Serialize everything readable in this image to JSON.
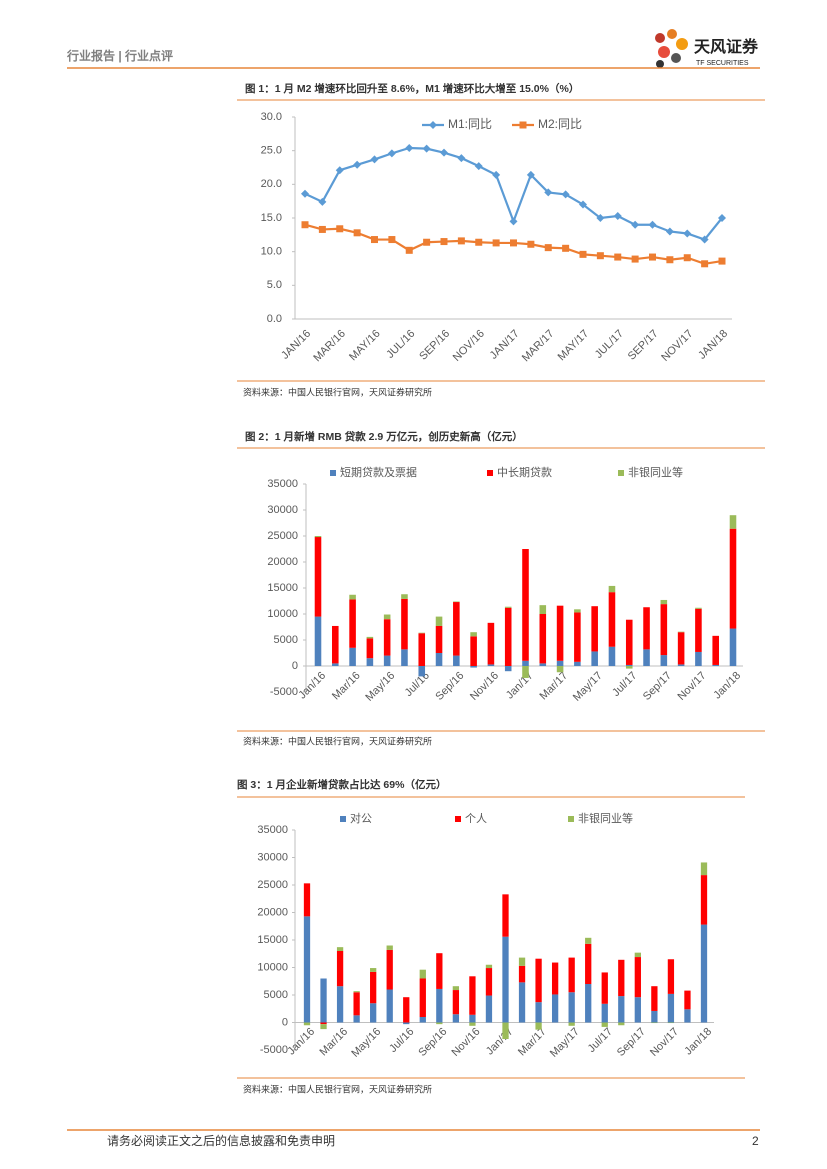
{
  "header": {
    "title": "行业报告 | 行业点评",
    "logo_name": "天风证券",
    "logo_sub": "TF SECURITIES"
  },
  "footer": {
    "text": "请务必阅读正文之后的信息披露和免责申明",
    "page": "2"
  },
  "chart_data": [
    {
      "type": "line",
      "title": "图 1：1 月 M2 增速环比回升至 8.6%，M1 增速环比大增至 15.0%（%）",
      "source": "资料来源：中国人民银行官网，天风证券研究所",
      "categories": [
        "JAN/16",
        null,
        "MAR/16",
        null,
        "MAY/16",
        null,
        "JUL/16",
        null,
        "SEP/16",
        null,
        "NOV/16",
        null,
        "JAN/17",
        null,
        "MAR/17",
        null,
        "MAY/17",
        null,
        "JUL/17",
        null,
        "SEP/17",
        null,
        "NOV/17",
        null,
        "JAN/18"
      ],
      "series": [
        {
          "name": "M1:同比",
          "color": "#5b9bd5",
          "marker": "diamond",
          "values": [
            18.6,
            17.4,
            22.1,
            22.9,
            23.7,
            24.6,
            25.4,
            25.3,
            24.7,
            23.9,
            22.7,
            21.4,
            14.5,
            21.4,
            18.8,
            18.5,
            17.0,
            15.0,
            15.3,
            14.0,
            14.0,
            13.0,
            12.7,
            11.8,
            15.0
          ]
        },
        {
          "name": "M2:同比",
          "color": "#ed7d31",
          "marker": "square",
          "values": [
            14.0,
            13.3,
            13.4,
            12.8,
            11.8,
            11.8,
            10.2,
            11.4,
            11.5,
            11.6,
            11.4,
            11.3,
            11.3,
            11.1,
            10.6,
            10.5,
            9.6,
            9.4,
            9.2,
            8.9,
            9.2,
            8.8,
            9.1,
            8.2,
            8.6
          ]
        }
      ],
      "ylim": [
        0,
        30
      ],
      "yticks": [
        {
          "value": 0,
          "label": "0.0"
        },
        {
          "value": 5,
          "label": "5.0"
        },
        {
          "value": 10,
          "label": "10.0"
        },
        {
          "value": 15,
          "label": "15.0"
        },
        {
          "value": 20,
          "label": "20.0"
        },
        {
          "value": 25,
          "label": "25.0"
        },
        {
          "value": 30,
          "label": "30.0"
        }
      ]
    },
    {
      "type": "stacked_bar",
      "title": "图 2：1 月新增 RMB 贷款 2.9 万亿元，创历史新高（亿元）",
      "source": "资料来源：中国人民银行官网，天风证券研究所",
      "categories": [
        "Jan/16",
        null,
        "Mar/16",
        null,
        "May/16",
        null,
        "Jul/16",
        null,
        "Sep/16",
        null,
        "Nov/16",
        null,
        "Jan/17",
        null,
        "Mar/17",
        null,
        "May/17",
        null,
        "Jul/17",
        null,
        "Sep/17",
        null,
        "Nov/17",
        null,
        "Jan/18"
      ],
      "series": [
        {
          "name": "短期贷款及票据",
          "color": "#4f81bd",
          "values": [
            9500,
            500,
            3500,
            1500,
            2000,
            3200,
            -2000,
            2500,
            2000,
            -300,
            300,
            -1000,
            1000,
            500,
            1000,
            800,
            2800,
            3700,
            200,
            3200,
            2100,
            300,
            2700,
            200,
            7200
          ]
        },
        {
          "name": "中长期贷款",
          "color": "#ff0000",
          "values": [
            15300,
            7200,
            9300,
            3800,
            7000,
            9700,
            6300,
            5200,
            10300,
            5700,
            8000,
            11200,
            21500,
            9500,
            10600,
            9500,
            8700,
            10500,
            8700,
            8100,
            9800,
            6200,
            8300,
            5600,
            19200
          ]
        },
        {
          "name": "非银同业等",
          "color": "#9bbb59",
          "values": [
            200,
            0,
            900,
            300,
            900,
            900,
            100,
            1800,
            100,
            800,
            0,
            200,
            -2300,
            1700,
            -1200,
            600,
            0,
            1200,
            -500,
            0,
            800,
            100,
            200,
            0,
            2600
          ]
        }
      ],
      "ylim": [
        -5000,
        35000
      ],
      "yticks": [
        -5000,
        0,
        5000,
        10000,
        15000,
        20000,
        25000,
        30000,
        35000
      ]
    },
    {
      "type": "stacked_bar",
      "title": "图 3：1 月企业新增贷款占比达 69%（亿元）",
      "source": "资料来源：中国人民银行官网，天风证券研究所",
      "categories": [
        "Jan/16",
        null,
        "Mar/16",
        null,
        "May/16",
        null,
        "Jul/16",
        null,
        "Sep/16",
        null,
        "Nov/16",
        null,
        "Jan/17",
        null,
        "Mar/17",
        null,
        "May/17",
        null,
        "Jul/17",
        null,
        "Sep/17",
        null,
        "Nov/17",
        null,
        "Jan/18"
      ],
      "series": [
        {
          "name": "对公",
          "color": "#4f81bd",
          "values": [
            19300,
            8000,
            6600,
            1300,
            3500,
            6000,
            -300,
            1000,
            6100,
            1500,
            1400,
            4900,
            15600,
            7300,
            3700,
            5100,
            5500,
            7000,
            3400,
            4800,
            4600,
            2100,
            5200,
            2400,
            17800
          ]
        },
        {
          "name": "个人",
          "color": "#ff0000",
          "values": [
            6000,
            -300,
            6400,
            4200,
            5700,
            7200,
            4600,
            7000,
            6500,
            4400,
            7000,
            5000,
            7700,
            3000,
            7900,
            5800,
            6300,
            7300,
            5700,
            6600,
            7300,
            4500,
            6300,
            3400,
            9000
          ]
        },
        {
          "name": "非银同业等",
          "color": "#9bbb59",
          "values": [
            -500,
            -900,
            700,
            200,
            700,
            800,
            0,
            1600,
            -300,
            700,
            -600,
            600,
            -3000,
            1500,
            -1300,
            0,
            -600,
            1100,
            -800,
            -500,
            800,
            -100,
            -100,
            0,
            2300
          ]
        }
      ],
      "ylim": [
        -5000,
        35000
      ],
      "yticks": [
        -5000,
        0,
        5000,
        10000,
        15000,
        20000,
        25000,
        30000,
        35000
      ]
    }
  ]
}
